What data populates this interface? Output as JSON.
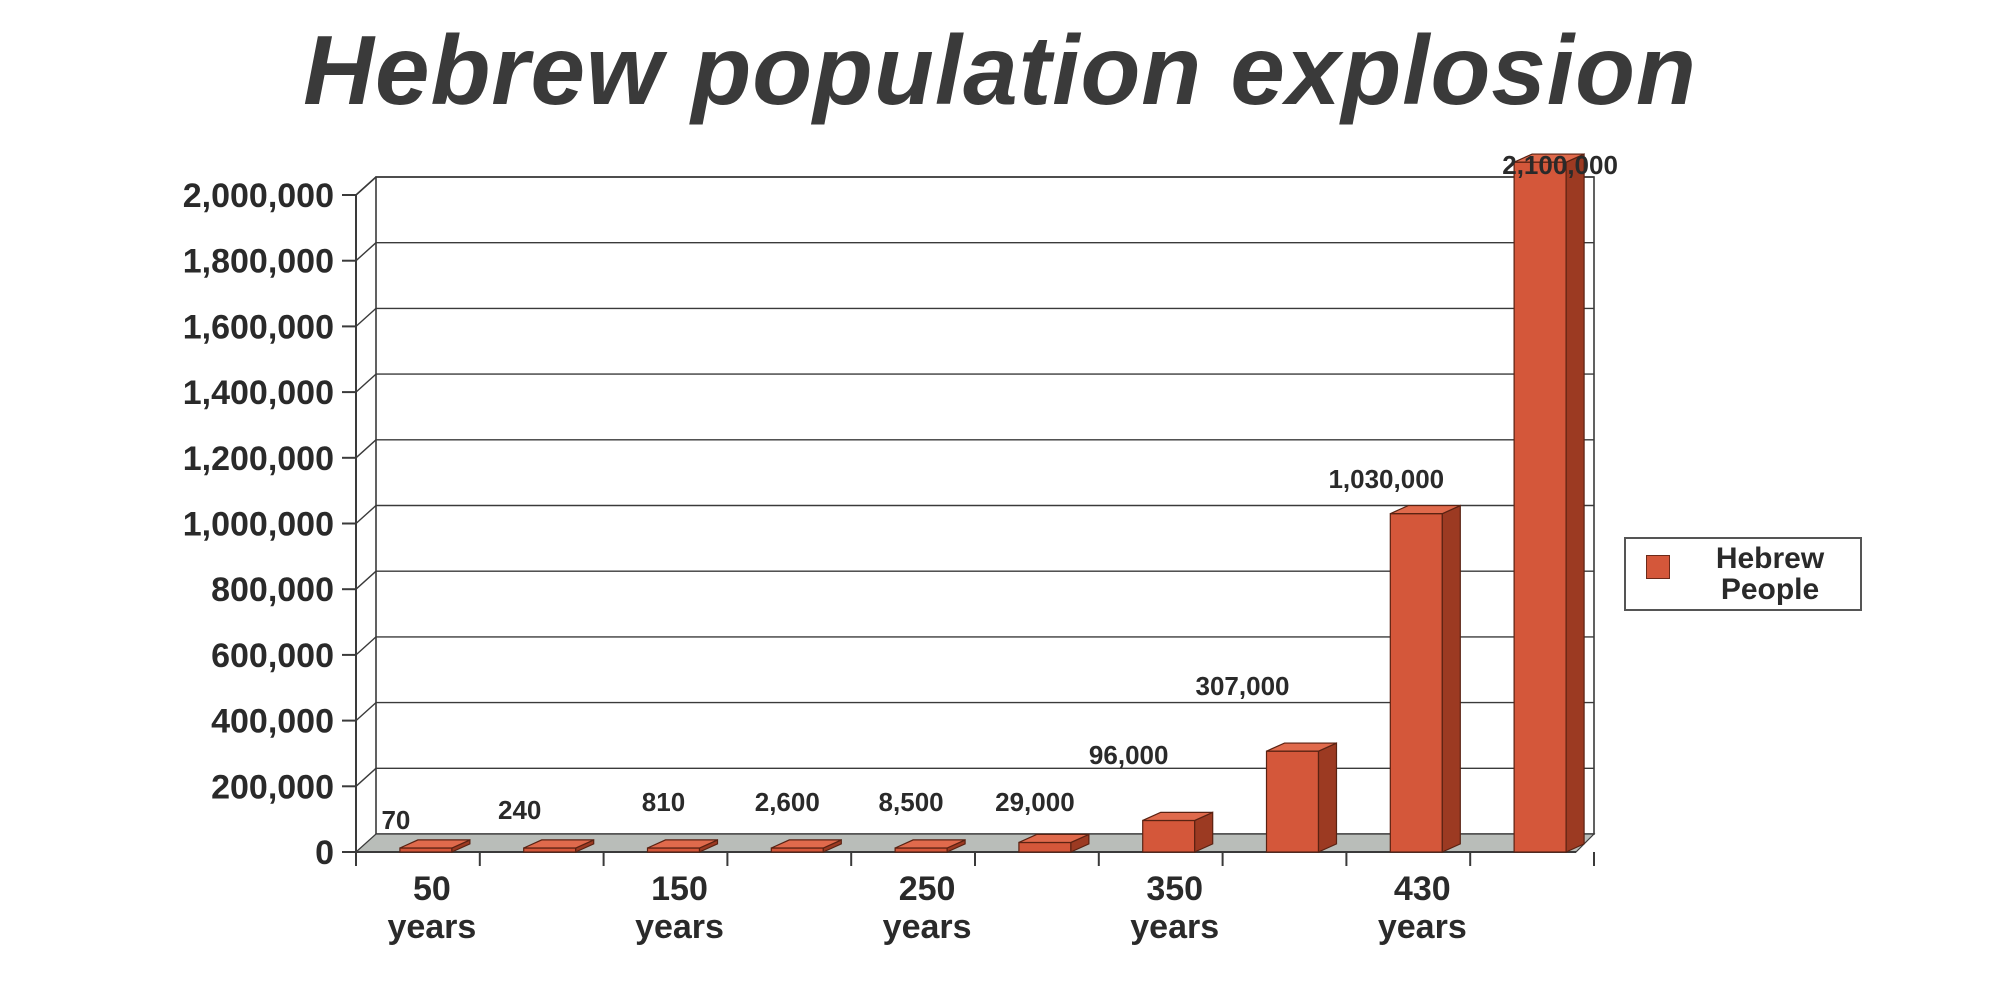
{
  "chart_data": {
    "type": "bar",
    "title": "Hebrew population explosion",
    "categories": [
      "",
      "",
      "",
      "",
      "",
      "",
      "",
      "",
      "",
      ""
    ],
    "x_tick_labels": [
      {
        "line1": "50",
        "line2": "years",
        "at": 0
      },
      {
        "line1": "150",
        "line2": "years",
        "at": 2
      },
      {
        "line1": "250",
        "line2": "years",
        "at": 4
      },
      {
        "line1": "350",
        "line2": "years",
        "at": 6
      },
      {
        "line1": "430",
        "line2": "years",
        "at": 8
      }
    ],
    "series": [
      {
        "name": "Hebrew People",
        "values": [
          70,
          240,
          810,
          2600,
          8500,
          29000,
          96000,
          307000,
          1030000,
          2100000
        ],
        "data_labels": [
          "70",
          "240",
          "810",
          "2,600",
          "8,500",
          "29,000",
          "96,000",
          "307,000",
          "1,030,000",
          "2,100,000"
        ],
        "color": "#d4573a"
      }
    ],
    "ylim": [
      0,
      2000000
    ],
    "y_ticks": [
      0,
      200000,
      400000,
      600000,
      800000,
      1000000,
      1200000,
      1400000,
      1600000,
      1800000,
      2000000
    ],
    "y_tick_labels": [
      "0",
      "200,000",
      "400,000",
      "600,000",
      "800,000",
      "1,000,000",
      "1,200,000",
      "1,400,000",
      "1,600,000",
      "1,800,000",
      "2,000,000"
    ],
    "xlabel": "",
    "ylabel": "",
    "grid": true,
    "legend": "right",
    "style": "3d"
  },
  "legend": {
    "label_line1": "Hebrew",
    "label_line2": "People"
  },
  "colors": {
    "bar_front": "#d4573a",
    "bar_side": "#9c3a22",
    "bar_top": "#e06a4c",
    "floor": "#b9bdb9",
    "grid": "#3a3a3a"
  }
}
